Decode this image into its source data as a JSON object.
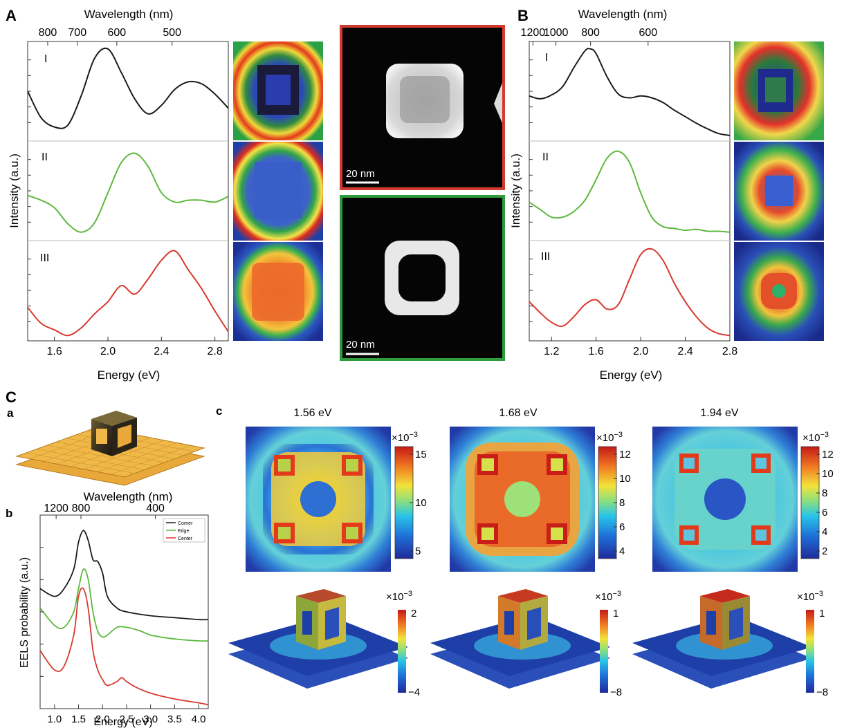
{
  "panel_labels": {
    "A": "A",
    "B": "B",
    "C": "C",
    "a": "a",
    "b": "b",
    "c": "c"
  },
  "panelA": {
    "top_axis_label": "Wavelength (nm)",
    "top_ticks": [
      {
        "nm": 800,
        "label": "800"
      },
      {
        "nm": 700,
        "label": "700"
      },
      {
        "nm": 600,
        "label": "600"
      },
      {
        "nm": 500,
        "label": "500"
      }
    ],
    "x_axis_label": "Energy (eV)",
    "x_ticks": [
      "1.6",
      "2.0",
      "2.4",
      "2.8"
    ],
    "y_axis_label": "Intensity (a.u.)",
    "row_labels": [
      "I",
      "II",
      "III"
    ],
    "scale_bar_label": "20 nm"
  },
  "panelB": {
    "top_axis_label": "Wavelength (nm)",
    "top_ticks": [
      {
        "nm": 1200,
        "label": "1200"
      },
      {
        "nm": 1000,
        "label": "1000"
      },
      {
        "nm": 800,
        "label": "800"
      },
      {
        "nm": 600,
        "label": "600"
      }
    ],
    "x_axis_label": "Energy (eV)",
    "x_ticks": [
      "1.2",
      "1.6",
      "2.0",
      "2.4",
      "2.8"
    ],
    "y_axis_label": "Intensity (a.u.)",
    "row_labels": [
      "I",
      "II",
      "III"
    ]
  },
  "panelCb": {
    "top_axis_label": "Wavelength (nm)",
    "top_ticks": [
      {
        "nm": 1200,
        "label": "1200"
      },
      {
        "nm": 800,
        "label": "800"
      },
      {
        "nm": 400,
        "label": "400"
      }
    ],
    "x_axis_label": "Energy (eV)",
    "x_ticks": [
      "1.0",
      "1.5",
      "2.0",
      "2.5",
      "3.0",
      "3.5",
      "4.0"
    ],
    "y_axis_label": "EELS probability (a.u.)",
    "legend": [
      "Corner",
      "Edge",
      "Center"
    ]
  },
  "panelCc": {
    "energies": [
      "1.56 eV",
      "1.68 eV",
      "1.94 eV"
    ],
    "multiplier": "×10",
    "exponent": "−3",
    "map_colorbars": [
      [
        "15",
        "10",
        "5"
      ],
      [
        "12",
        "10",
        "8",
        "6",
        "4"
      ],
      [
        "12",
        "10",
        "8",
        "6",
        "4",
        "2"
      ]
    ],
    "sim_colorbars": [
      [
        "2",
        "−4"
      ],
      [
        "1",
        "−8"
      ],
      [
        "1",
        "−8"
      ]
    ]
  },
  "chart_data": [
    {
      "type": "line",
      "panel": "A",
      "x_unit": "Energy (eV)",
      "xlim": [
        1.4,
        2.9
      ],
      "series": [
        {
          "name": "I",
          "color": "#1a1a1a",
          "x": [
            1.4,
            1.5,
            1.6,
            1.7,
            1.8,
            1.9,
            2.0,
            2.1,
            2.2,
            2.3,
            2.4,
            2.5,
            2.6,
            2.7,
            2.8,
            2.9
          ],
          "y": [
            0.5,
            0.22,
            0.12,
            0.14,
            0.45,
            0.85,
            0.95,
            0.7,
            0.42,
            0.26,
            0.35,
            0.52,
            0.6,
            0.58,
            0.47,
            0.32
          ]
        },
        {
          "name": "II",
          "color": "#5cb83c",
          "x": [
            1.4,
            1.5,
            1.6,
            1.7,
            1.8,
            1.9,
            2.0,
            2.1,
            2.2,
            2.3,
            2.4,
            2.5,
            2.6,
            2.7,
            2.8,
            2.9
          ],
          "y": [
            0.45,
            0.4,
            0.32,
            0.15,
            0.06,
            0.16,
            0.48,
            0.8,
            0.9,
            0.76,
            0.48,
            0.38,
            0.4,
            0.4,
            0.38,
            0.44
          ]
        },
        {
          "name": "III",
          "color": "#d8382e",
          "x": [
            1.4,
            1.5,
            1.6,
            1.7,
            1.8,
            1.9,
            2.0,
            2.1,
            2.2,
            2.3,
            2.4,
            2.5,
            2.6,
            2.7,
            2.8,
            2.9
          ],
          "y": [
            0.32,
            0.15,
            0.08,
            0.02,
            0.1,
            0.25,
            0.38,
            0.55,
            0.46,
            0.62,
            0.82,
            0.92,
            0.72,
            0.52,
            0.28,
            0.06
          ]
        }
      ]
    },
    {
      "type": "line",
      "panel": "B",
      "x_unit": "Energy (eV)",
      "xlim": [
        1.0,
        2.8
      ],
      "series": [
        {
          "name": "I",
          "color": "#1a1a1a",
          "x": [
            1.0,
            1.1,
            1.2,
            1.3,
            1.4,
            1.5,
            1.55,
            1.6,
            1.7,
            1.8,
            1.9,
            2.0,
            2.1,
            2.2,
            2.3,
            2.4,
            2.5,
            2.6,
            2.7,
            2.8
          ],
          "y": [
            0.45,
            0.42,
            0.46,
            0.55,
            0.75,
            0.93,
            0.95,
            0.9,
            0.65,
            0.47,
            0.43,
            0.45,
            0.43,
            0.38,
            0.3,
            0.23,
            0.16,
            0.1,
            0.05,
            0.03
          ]
        },
        {
          "name": "II",
          "color": "#5cb83c",
          "x": [
            1.0,
            1.1,
            1.2,
            1.3,
            1.4,
            1.5,
            1.6,
            1.7,
            1.8,
            1.9,
            2.0,
            2.1,
            2.2,
            2.3,
            2.4,
            2.5,
            2.6,
            2.7,
            2.8
          ],
          "y": [
            0.38,
            0.3,
            0.22,
            0.22,
            0.28,
            0.4,
            0.62,
            0.85,
            0.92,
            0.8,
            0.48,
            0.22,
            0.12,
            0.1,
            0.08,
            0.09,
            0.07,
            0.07,
            0.06
          ]
        },
        {
          "name": "III",
          "color": "#d8382e",
          "x": [
            1.0,
            1.1,
            1.2,
            1.3,
            1.4,
            1.5,
            1.6,
            1.7,
            1.8,
            1.9,
            2.0,
            2.1,
            2.2,
            2.3,
            2.4,
            2.5,
            2.6,
            2.7,
            2.8
          ],
          "y": [
            0.38,
            0.26,
            0.16,
            0.12,
            0.22,
            0.35,
            0.4,
            0.3,
            0.35,
            0.62,
            0.88,
            0.94,
            0.82,
            0.58,
            0.38,
            0.22,
            0.1,
            0.04,
            0.02
          ]
        }
      ]
    },
    {
      "type": "line",
      "panel": "Cb",
      "x_unit": "Energy (eV)",
      "xlim": [
        0.7,
        4.2
      ],
      "ylim": [
        0,
        1
      ],
      "series": [
        {
          "name": "Corner",
          "color": "#1a1a1a",
          "x": [
            0.7,
            1.0,
            1.2,
            1.4,
            1.5,
            1.6,
            1.7,
            1.8,
            1.9,
            2.0,
            2.1,
            2.3,
            2.5,
            3.0,
            3.5,
            4.0,
            4.2
          ],
          "y": [
            0.62,
            0.58,
            0.62,
            0.72,
            0.86,
            0.92,
            0.87,
            0.77,
            0.76,
            0.7,
            0.58,
            0.52,
            0.5,
            0.48,
            0.47,
            0.46,
            0.46
          ]
        },
        {
          "name": "Edge",
          "color": "#5cb83c",
          "x": [
            0.7,
            1.0,
            1.2,
            1.4,
            1.5,
            1.6,
            1.7,
            1.8,
            1.9,
            2.0,
            2.1,
            2.3,
            2.5,
            2.8,
            3.0,
            3.5,
            4.0,
            4.2
          ],
          "y": [
            0.52,
            0.43,
            0.42,
            0.5,
            0.62,
            0.72,
            0.67,
            0.5,
            0.4,
            0.37,
            0.38,
            0.42,
            0.42,
            0.4,
            0.38,
            0.36,
            0.35,
            0.35
          ]
        },
        {
          "name": "Center",
          "color": "#d8382e",
          "x": [
            0.7,
            1.0,
            1.2,
            1.4,
            1.5,
            1.6,
            1.7,
            1.8,
            1.9,
            2.0,
            2.1,
            2.3,
            2.4,
            2.5,
            2.7,
            3.0,
            3.5,
            4.0,
            4.2
          ],
          "y": [
            0.3,
            0.2,
            0.22,
            0.38,
            0.58,
            0.62,
            0.52,
            0.3,
            0.2,
            0.15,
            0.12,
            0.14,
            0.16,
            0.14,
            0.11,
            0.08,
            0.05,
            0.03,
            0.02
          ]
        }
      ]
    }
  ]
}
